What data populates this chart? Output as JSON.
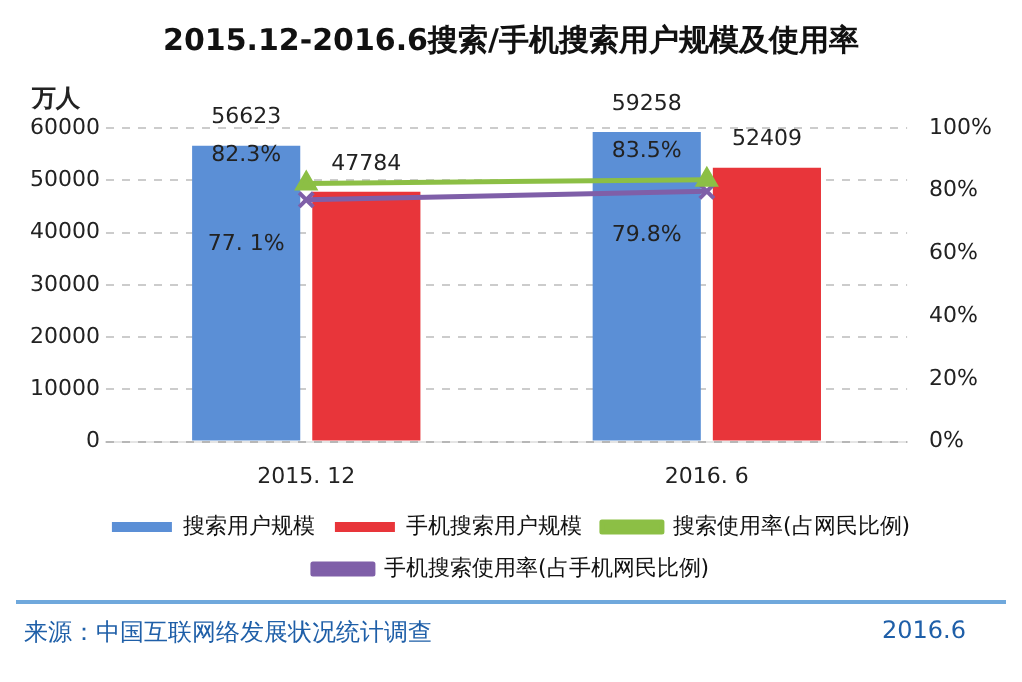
{
  "chart_data": {
    "type": "bar",
    "title": "2015.12-2016.6搜索/手机搜索用户规模及使用率",
    "ylabel": "万人",
    "categories": [
      "2015. 12",
      "2016. 6"
    ],
    "series": [
      {
        "name": "搜索用户规模",
        "color": "#5b8fd6",
        "values": [
          56623,
          59258
        ],
        "value_labels": [
          "56623",
          "59258"
        ]
      },
      {
        "name": "手机搜索用户规模",
        "color": "#e8353a",
        "values": [
          47784,
          52409
        ],
        "value_labels": [
          "47784",
          "52409"
        ]
      },
      {
        "name": "搜索使用率(占网民比例)",
        "type": "line",
        "axis": "y2",
        "color": "#8cbf45",
        "marker": "triangle",
        "values": [
          82.3,
          83.5
        ],
        "value_labels": [
          "82.3%",
          "83.5%"
        ]
      },
      {
        "name": "手机搜索使用率(占手机网民比例)",
        "type": "line",
        "axis": "y2",
        "color": "#7f5fa8",
        "marker": "cross",
        "values": [
          77.1,
          79.8
        ],
        "value_labels": [
          "77. 1%",
          "79.8%"
        ]
      }
    ],
    "ylim": [
      0,
      60000
    ],
    "yticks": [
      0,
      10000,
      20000,
      30000,
      40000,
      50000,
      60000
    ],
    "y2lim": [
      0,
      100
    ],
    "y2ticks": [
      {
        "value": 0,
        "label": "0%"
      },
      {
        "value": 20,
        "label": "20%"
      },
      {
        "value": 40,
        "label": "40%"
      },
      {
        "value": 60,
        "label": "60%"
      },
      {
        "value": 80,
        "label": "80%"
      },
      {
        "value": 100,
        "label": "100%"
      }
    ],
    "grid": "y",
    "legend": "bottom",
    "annotations": [
      "来源：中国互联网络发展状况统计调查",
      "2016.6"
    ]
  }
}
